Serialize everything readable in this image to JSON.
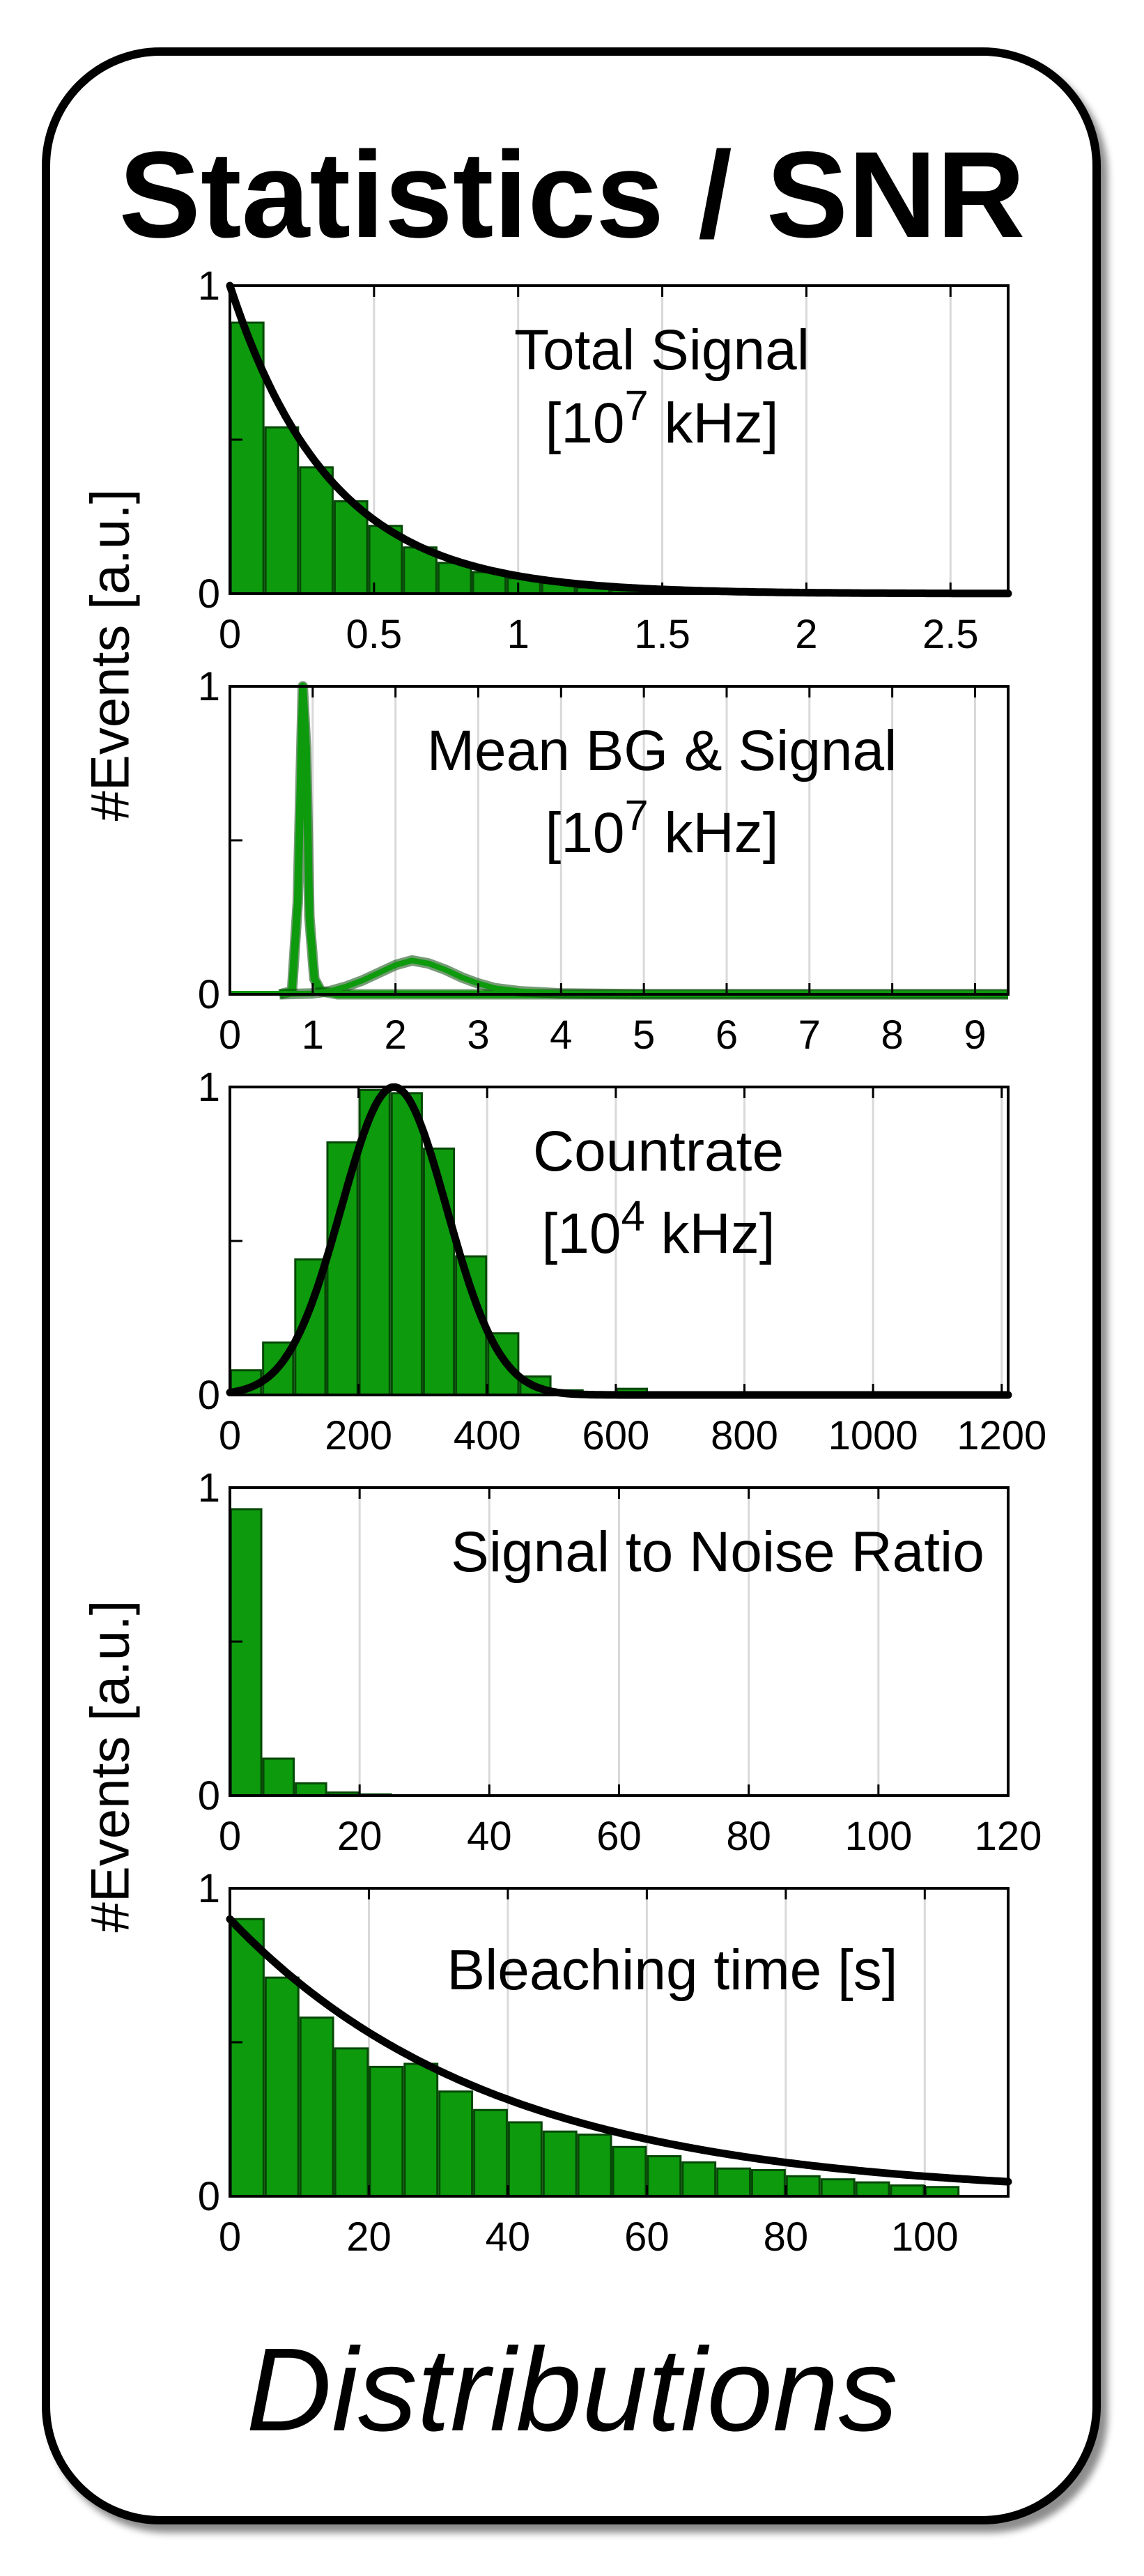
{
  "title": "Statistics / SNR",
  "footer": "Distributions",
  "y_axis_labels": [
    "#Events [a.u.]",
    "#Events [a.u.]"
  ],
  "colors": {
    "bar_fill": "#0d9a0d",
    "bar_edge": "#064806",
    "fit_line": "#000000",
    "grid": "#d9d9d9"
  },
  "chart_data": [
    {
      "type": "bar",
      "annotation": [
        "Total Signal",
        "[10",
        "7",
        " kHz]"
      ],
      "xlim": [
        0,
        2.7
      ],
      "ylim": [
        0,
        1
      ],
      "xticks": [
        0,
        0.5,
        1,
        1.5,
        2,
        2.5
      ],
      "xtick_labels": [
        "0",
        "0.5",
        "1",
        "1.5",
        "2",
        "2.5"
      ],
      "yticks": [
        0,
        1
      ],
      "ytick_labels": [
        "0",
        "1"
      ],
      "y_minor_ticks": [
        0.5
      ],
      "bin_width": 0.12,
      "bins": [
        0,
        0.12,
        0.24,
        0.36,
        0.48,
        0.6,
        0.72,
        0.84,
        0.96,
        1.08,
        1.2,
        1.32,
        1.44
      ],
      "values": [
        0.88,
        0.54,
        0.41,
        0.3,
        0.22,
        0.15,
        0.1,
        0.07,
        0.05,
        0.035,
        0.02,
        0.012,
        0.007
      ],
      "fit": {
        "type": "exponential",
        "amplitude": 1.0,
        "decay": 0.35
      }
    },
    {
      "type": "line",
      "annotation": [
        "Mean BG & Signal",
        "[10",
        "7",
        " kHz]"
      ],
      "xlim": [
        0,
        9.4
      ],
      "ylim": [
        0,
        1
      ],
      "xticks": [
        0,
        1,
        2,
        3,
        4,
        5,
        6,
        7,
        8,
        9
      ],
      "xtick_labels": [
        "0",
        "1",
        "2",
        "3",
        "4",
        "5",
        "6",
        "7",
        "8",
        "9"
      ],
      "yticks": [
        0,
        1
      ],
      "ytick_labels": [
        "0",
        "1"
      ],
      "y_minor_ticks": [
        0.5
      ],
      "series": [
        {
          "style": "peak",
          "x": [
            0.6,
            0.75,
            0.82,
            0.88,
            0.92,
            0.96,
            1.02,
            1.1,
            1.3,
            2,
            4,
            9.4
          ],
          "y": [
            0,
            0.01,
            0.3,
            1.0,
            0.8,
            0.25,
            0.05,
            0.01,
            0,
            0,
            0,
            0
          ]
        },
        {
          "style": "hump",
          "x": [
            0.6,
            1.0,
            1.2,
            1.4,
            1.6,
            1.8,
            2.0,
            2.2,
            2.4,
            2.6,
            2.8,
            3.0,
            3.2,
            3.5,
            4.0,
            5.0,
            9.4
          ],
          "y": [
            0,
            0.003,
            0.01,
            0.025,
            0.045,
            0.07,
            0.095,
            0.11,
            0.1,
            0.08,
            0.055,
            0.035,
            0.02,
            0.01,
            0.003,
            0,
            0
          ]
        }
      ]
    },
    {
      "type": "bar",
      "annotation": [
        "Countrate",
        "[10",
        "4",
        " kHz]"
      ],
      "xlim": [
        0,
        1210
      ],
      "ylim": [
        0,
        1
      ],
      "xticks": [
        0,
        200,
        400,
        600,
        800,
        1000,
        1200
      ],
      "xtick_labels": [
        "0",
        "200",
        "400",
        "600",
        "800",
        "1000",
        "1200"
      ],
      "yticks": [
        0,
        1
      ],
      "ytick_labels": [
        "0",
        "1"
      ],
      "y_minor_ticks": [
        0.5
      ],
      "bin_width": 50,
      "bins": [
        0,
        50,
        100,
        150,
        200,
        250,
        300,
        350,
        400,
        450,
        500,
        550,
        600
      ],
      "values": [
        0.08,
        0.17,
        0.44,
        0.82,
        0.99,
        0.98,
        0.8,
        0.45,
        0.2,
        0.06,
        0.015,
        0,
        0.02
      ],
      "fit": {
        "type": "gaussian",
        "amplitude": 1.0,
        "mean": 255,
        "sigma": 82
      }
    },
    {
      "type": "bar",
      "annotation": [
        "Signal to Noise Ratio"
      ],
      "xlim": [
        0,
        120
      ],
      "ylim": [
        0,
        1
      ],
      "xticks": [
        0,
        20,
        40,
        60,
        80,
        100,
        120
      ],
      "xtick_labels": [
        "0",
        "20",
        "40",
        "60",
        "80",
        "100",
        "120"
      ],
      "yticks": [
        0,
        1
      ],
      "ytick_labels": [
        "0",
        "1"
      ],
      "y_minor_ticks": [
        0.5
      ],
      "bin_width": 5,
      "bins": [
        0,
        5,
        10,
        15,
        20
      ],
      "values": [
        0.93,
        0.12,
        0.04,
        0.01,
        0.004
      ]
    },
    {
      "type": "bar",
      "annotation": [
        "Bleaching time [s]"
      ],
      "xlim": [
        0,
        112
      ],
      "ylim": [
        0,
        1
      ],
      "xticks": [
        0,
        20,
        40,
        60,
        80,
        100
      ],
      "xtick_labels": [
        "0",
        "20",
        "40",
        "60",
        "80",
        "100"
      ],
      "yticks": [
        0,
        1
      ],
      "ytick_labels": [
        "0",
        "1"
      ],
      "y_minor_ticks": [
        0.5
      ],
      "bin_width": 5,
      "bins": [
        0,
        5,
        10,
        15,
        20,
        25,
        30,
        35,
        40,
        45,
        50,
        55,
        60,
        65,
        70,
        75,
        80,
        85,
        90,
        95,
        100
      ],
      "values": [
        0.9,
        0.71,
        0.58,
        0.48,
        0.42,
        0.43,
        0.34,
        0.28,
        0.24,
        0.21,
        0.2,
        0.16,
        0.13,
        0.11,
        0.09,
        0.085,
        0.065,
        0.055,
        0.045,
        0.035,
        0.03
      ],
      "fit": {
        "type": "exponential",
        "amplitude": 0.9,
        "decay": 38
      }
    }
  ]
}
